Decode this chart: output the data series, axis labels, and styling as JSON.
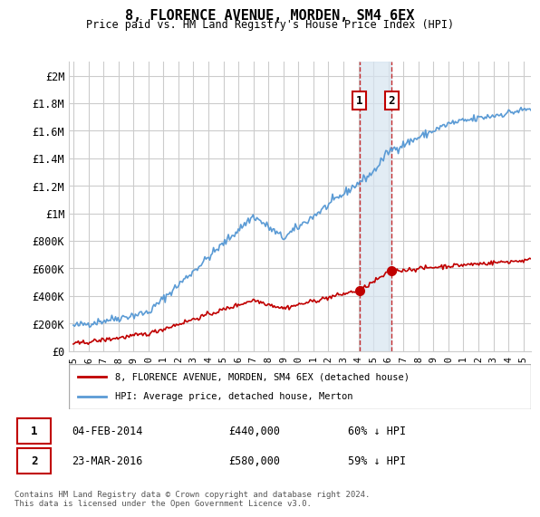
{
  "title": "8, FLORENCE AVENUE, MORDEN, SM4 6EX",
  "subtitle": "Price paid vs. HM Land Registry's House Price Index (HPI)",
  "ylabel_ticks": [
    "£0",
    "£200K",
    "£400K",
    "£600K",
    "£800K",
    "£1M",
    "£1.2M",
    "£1.4M",
    "£1.6M",
    "£1.8M",
    "£2M"
  ],
  "ytick_values": [
    0,
    200000,
    400000,
    600000,
    800000,
    1000000,
    1200000,
    1400000,
    1600000,
    1800000,
    2000000
  ],
  "ylim": [
    0,
    2100000
  ],
  "xlim_start": 1995.0,
  "xlim_end": 2025.5,
  "transaction1": {
    "date": 2014.08,
    "price": 440000,
    "label": "1"
  },
  "transaction2": {
    "date": 2016.22,
    "price": 580000,
    "label": "2"
  },
  "legend_line1": "8, FLORENCE AVENUE, MORDEN, SM4 6EX (detached house)",
  "legend_line2": "HPI: Average price, detached house, Merton",
  "table_row1": [
    "1",
    "04-FEB-2014",
    "£440,000",
    "60% ↓ HPI"
  ],
  "table_row2": [
    "2",
    "23-MAR-2016",
    "£580,000",
    "59% ↓ HPI"
  ],
  "footnote": "Contains HM Land Registry data © Crown copyright and database right 2024.\nThis data is licensed under the Open Government Licence v3.0.",
  "hpi_color": "#5b9bd5",
  "price_color": "#c00000",
  "shade_color": "#d6e4f0",
  "marker_color": "#c00000",
  "grid_color": "#cccccc",
  "background_color": "#ffffff"
}
